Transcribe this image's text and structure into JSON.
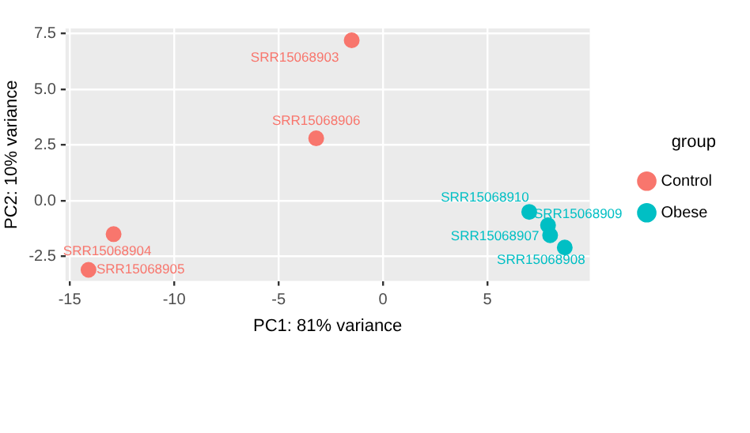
{
  "chart_data": {
    "type": "scatter",
    "xlabel": "PC1: 81% variance",
    "ylabel": "PC2: 10% variance",
    "legend_title": "group",
    "legend": "right",
    "grid": true,
    "marker": "circle",
    "xlim": [
      -15.2,
      9.9
    ],
    "xticks": [
      -15,
      -10,
      -5,
      0,
      5
    ],
    "ylim": [
      -3.6,
      7.73
    ],
    "yticks": [
      {
        "value": -2.5,
        "label": "-2.5"
      },
      {
        "value": 0,
        "label": "0.0"
      },
      {
        "value": 2.5,
        "label": "2.5"
      },
      {
        "value": 5,
        "label": "5.0"
      },
      {
        "value": 7.5,
        "label": "7.5"
      }
    ],
    "series": [
      {
        "name": "Control",
        "color": "#f8766d",
        "x": [
          -1.5,
          -3.2,
          -12.9,
          -14.1
        ],
        "values": [
          7.2,
          2.8,
          -1.5,
          -3.1
        ]
      },
      {
        "name": "Obese",
        "color": "#00bfc4",
        "x": [
          7.0,
          7.9,
          8.0,
          8.7
        ],
        "values": [
          -0.5,
          -1.1,
          -1.55,
          -2.1
        ]
      }
    ],
    "annotations": [
      {
        "text": "SRR15068903",
        "x": -1.5,
        "y": 7.2
      },
      {
        "text": "SRR15068906",
        "x": -3.2,
        "y": 2.8
      },
      {
        "text": "SRR15068904",
        "x": -12.9,
        "y": -1.5
      },
      {
        "text": "SRR15068905",
        "x": -14.1,
        "y": -3.1
      },
      {
        "text": "SRR15068910",
        "x": 7.0,
        "y": -0.5
      },
      {
        "text": "SRR15068909",
        "x": 7.9,
        "y": -1.1
      },
      {
        "text": "SRR15068907",
        "x": 8.0,
        "y": -1.55
      },
      {
        "text": "SRR15068908",
        "x": 8.7,
        "y": -2.1
      }
    ]
  }
}
